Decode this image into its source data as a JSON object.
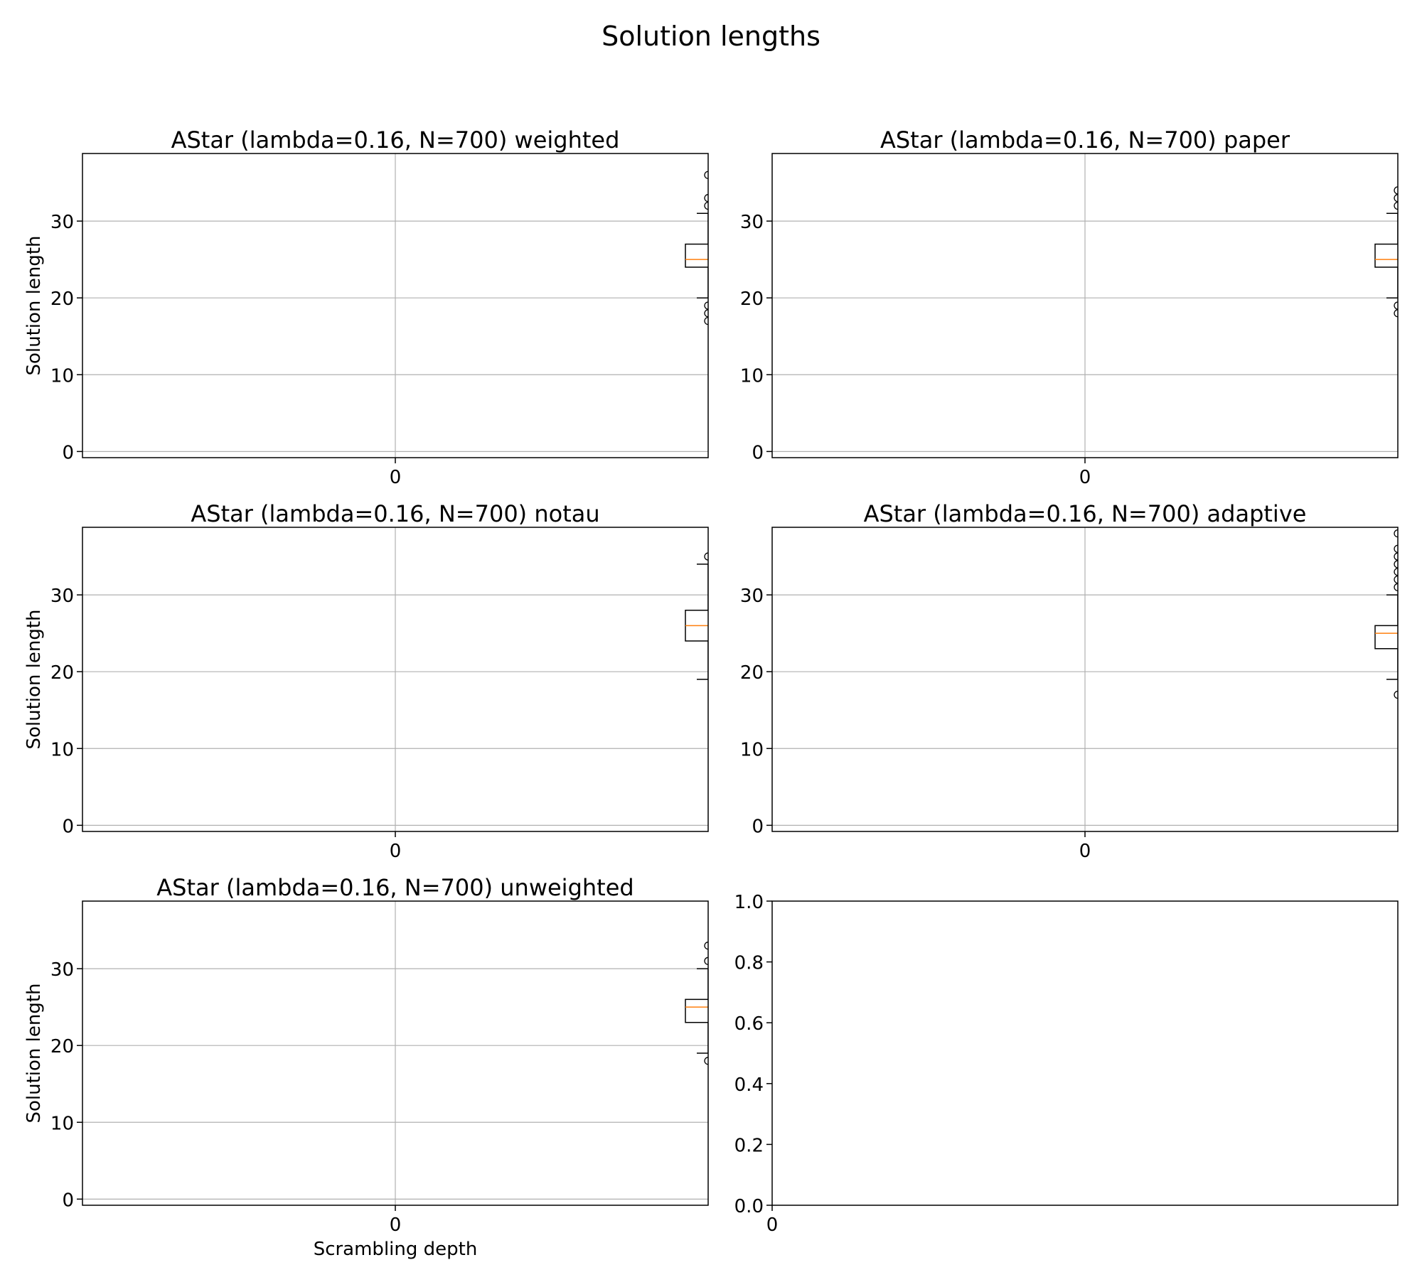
{
  "title": "Solution lengths",
  "chart_data": [
    {
      "type": "box",
      "title": "AStar (lambda=0.16, N=700) weighted",
      "xlabel": "",
      "ylabel": "Solution length",
      "x_ticks": [
        "0"
      ],
      "y_ticks": [
        0,
        10,
        20,
        30
      ],
      "ylim": [
        -0.8,
        38.8
      ],
      "grid": true,
      "box": {
        "position": 1,
        "whisker_low": 20,
        "q1": 24,
        "median": 25,
        "q3": 27,
        "whisker_high": 31
      },
      "fliers": [
        17,
        18,
        19,
        32,
        33,
        36
      ]
    },
    {
      "type": "box",
      "title": "AStar (lambda=0.16, N=700) paper",
      "xlabel": "",
      "ylabel": "",
      "x_ticks": [
        "0"
      ],
      "y_ticks": [
        0,
        10,
        20,
        30
      ],
      "ylim": [
        -0.8,
        38.8
      ],
      "grid": true,
      "box": {
        "position": 1,
        "whisker_low": 20,
        "q1": 24,
        "median": 25,
        "q3": 27,
        "whisker_high": 31
      },
      "fliers": [
        18,
        19,
        32,
        33,
        34
      ]
    },
    {
      "type": "box",
      "title": "AStar (lambda=0.16, N=700) notau",
      "xlabel": "",
      "ylabel": "Solution length",
      "x_ticks": [
        "0"
      ],
      "y_ticks": [
        0,
        10,
        20,
        30
      ],
      "ylim": [
        -0.8,
        38.8
      ],
      "grid": true,
      "box": {
        "position": 1,
        "whisker_low": 19,
        "q1": 24,
        "median": 26,
        "q3": 28,
        "whisker_high": 34
      },
      "fliers": [
        35
      ]
    },
    {
      "type": "box",
      "title": "AStar (lambda=0.16, N=700) adaptive",
      "xlabel": "",
      "ylabel": "",
      "x_ticks": [
        "0"
      ],
      "y_ticks": [
        0,
        10,
        20,
        30
      ],
      "ylim": [
        -0.8,
        38.8
      ],
      "grid": true,
      "box": {
        "position": 1,
        "whisker_low": 19,
        "q1": 23,
        "median": 25,
        "q3": 26,
        "whisker_high": 30
      },
      "fliers": [
        17,
        31,
        32,
        33,
        34,
        35,
        36,
        38
      ]
    },
    {
      "type": "box",
      "title": "AStar (lambda=0.16, N=700) unweighted",
      "xlabel": "Scrambling depth",
      "ylabel": "Solution length",
      "x_ticks": [
        "0"
      ],
      "y_ticks": [
        0,
        10,
        20,
        30
      ],
      "ylim": [
        -0.8,
        38.8
      ],
      "grid": true,
      "box": {
        "position": 1,
        "whisker_low": 19,
        "q1": 23,
        "median": 25,
        "q3": 26,
        "whisker_high": 30
      },
      "fliers": [
        18,
        31,
        33
      ]
    },
    {
      "type": "empty",
      "title": "",
      "xlabel": "",
      "ylabel": "",
      "x_ticks": [
        "0"
      ],
      "y_ticks": [
        "0.0",
        "0.2",
        "0.4",
        "0.6",
        "0.8",
        "1.0"
      ],
      "ylim": [
        0,
        1
      ],
      "grid": false
    }
  ],
  "colors": {
    "median": "#ff7f0e",
    "box": "#000000",
    "grid": "#b0b0b0",
    "axes": "#000000"
  }
}
